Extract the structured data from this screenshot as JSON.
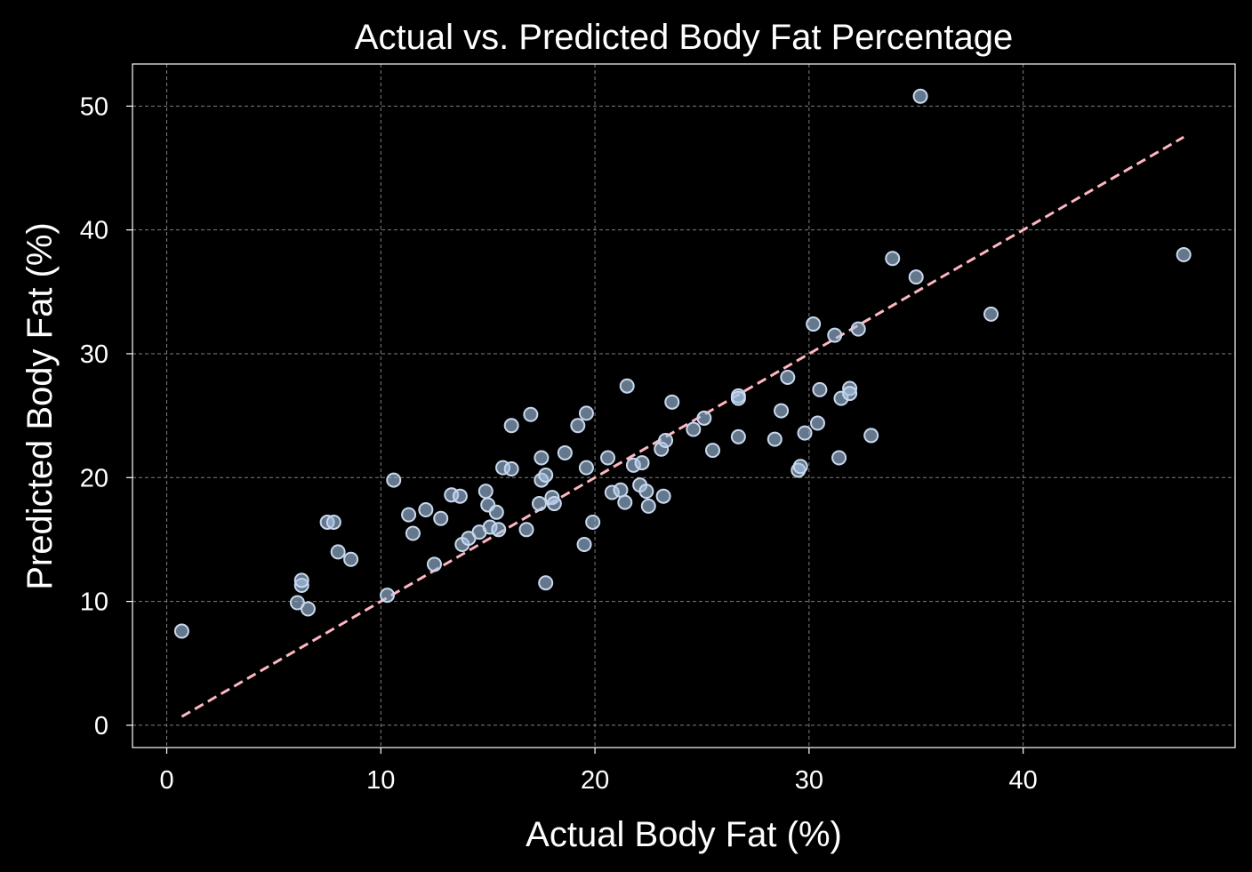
{
  "chart_data": {
    "type": "scatter",
    "title": "Actual vs. Predicted Body Fat Percentage",
    "xlabel": "Actual Body Fat (%)",
    "ylabel": "Predicted Body Fat (%)",
    "xlim": [
      -1.6,
      49.9
    ],
    "ylim": [
      -1.8,
      53.4
    ],
    "xticks": [
      0,
      10,
      20,
      30,
      40
    ],
    "yticks": [
      0,
      10,
      20,
      30,
      40,
      50
    ],
    "grid": true,
    "reference_line": {
      "style": "dashed",
      "x": [
        0.7,
        47.5
      ],
      "y": [
        0.7,
        47.5
      ]
    },
    "colors": {
      "background": "#000000",
      "points": "#a9c6e8",
      "point_edge": "#c8d8ee",
      "reference_line": "#ffb6c1",
      "grid": "#7f7f7f"
    },
    "series": [
      {
        "points": [
          [
            0.7,
            7.6
          ],
          [
            6.1,
            9.9
          ],
          [
            6.3,
            11.3
          ],
          [
            6.3,
            11.7
          ],
          [
            6.6,
            9.4
          ],
          [
            7.5,
            16.4
          ],
          [
            7.8,
            16.4
          ],
          [
            8.0,
            14.0
          ],
          [
            8.6,
            13.4
          ],
          [
            10.3,
            10.5
          ],
          [
            10.6,
            19.8
          ],
          [
            11.3,
            17.0
          ],
          [
            11.5,
            15.5
          ],
          [
            12.1,
            17.4
          ],
          [
            12.5,
            13.0
          ],
          [
            12.8,
            16.7
          ],
          [
            13.3,
            18.6
          ],
          [
            13.7,
            18.5
          ],
          [
            13.8,
            14.6
          ],
          [
            14.1,
            15.1
          ],
          [
            14.6,
            15.6
          ],
          [
            14.9,
            18.9
          ],
          [
            15.0,
            17.8
          ],
          [
            15.1,
            16.0
          ],
          [
            15.4,
            17.2
          ],
          [
            15.5,
            15.8
          ],
          [
            15.7,
            20.8
          ],
          [
            16.1,
            20.7
          ],
          [
            16.1,
            24.2
          ],
          [
            16.8,
            15.8
          ],
          [
            17.0,
            25.1
          ],
          [
            17.4,
            17.9
          ],
          [
            17.5,
            19.8
          ],
          [
            17.5,
            21.6
          ],
          [
            17.7,
            20.2
          ],
          [
            17.7,
            11.5
          ],
          [
            18.0,
            18.4
          ],
          [
            18.1,
            17.9
          ],
          [
            18.6,
            22.0
          ],
          [
            19.2,
            24.2
          ],
          [
            19.5,
            14.6
          ],
          [
            19.6,
            20.8
          ],
          [
            19.6,
            25.2
          ],
          [
            19.9,
            16.4
          ],
          [
            20.6,
            21.6
          ],
          [
            20.8,
            18.8
          ],
          [
            21.2,
            19.0
          ],
          [
            21.4,
            18.0
          ],
          [
            21.5,
            27.4
          ],
          [
            21.8,
            21.0
          ],
          [
            22.1,
            19.4
          ],
          [
            22.2,
            21.2
          ],
          [
            22.4,
            18.9
          ],
          [
            22.5,
            17.7
          ],
          [
            23.1,
            22.3
          ],
          [
            23.2,
            18.5
          ],
          [
            23.3,
            23.0
          ],
          [
            23.6,
            26.1
          ],
          [
            24.6,
            23.9
          ],
          [
            25.1,
            24.8
          ],
          [
            25.5,
            22.2
          ],
          [
            26.7,
            26.6
          ],
          [
            26.7,
            26.4
          ],
          [
            26.7,
            23.3
          ],
          [
            28.4,
            23.1
          ],
          [
            28.7,
            25.4
          ],
          [
            29.0,
            28.1
          ],
          [
            29.5,
            20.6
          ],
          [
            29.6,
            20.9
          ],
          [
            29.8,
            23.6
          ],
          [
            30.2,
            32.4
          ],
          [
            30.4,
            24.4
          ],
          [
            30.5,
            27.1
          ],
          [
            31.2,
            31.5
          ],
          [
            31.4,
            21.6
          ],
          [
            31.5,
            26.4
          ],
          [
            31.9,
            27.2
          ],
          [
            31.9,
            26.8
          ],
          [
            32.3,
            32.0
          ],
          [
            32.9,
            23.4
          ],
          [
            33.9,
            37.7
          ],
          [
            35.0,
            36.2
          ],
          [
            35.2,
            50.8
          ],
          [
            38.5,
            33.2
          ],
          [
            47.5,
            38.0
          ]
        ]
      }
    ]
  }
}
